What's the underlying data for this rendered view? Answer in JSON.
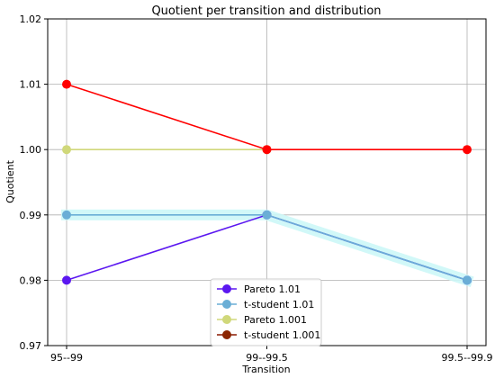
{
  "chart_data": {
    "type": "line",
    "title": "Quotient per transition and distribution",
    "xlabel": "Transition",
    "ylabel": "Quotient",
    "categories": [
      "95--99",
      "99--99.5",
      "99.5--99.9"
    ],
    "ylim": [
      0.97,
      1.02
    ],
    "yticks": [
      "0.97",
      "0.98",
      "0.99",
      "1.00",
      "1.01",
      "1.02"
    ],
    "ytick_values": [
      0.97,
      0.98,
      0.99,
      1.0,
      1.01,
      1.02
    ],
    "grid": true,
    "legend_position": "bottom-center",
    "series": [
      {
        "name": "Pareto 1.01",
        "values": [
          0.98,
          0.99,
          0.98
        ],
        "color": "#5b17f0",
        "marker_color": "#5b17f0"
      },
      {
        "name": "t-student 1.01",
        "values": [
          0.99,
          0.99,
          0.98
        ],
        "color": "#6aaed6",
        "marker_color": "#6aaed6",
        "highlight_color": "#ccf7f7"
      },
      {
        "name": "Pareto 1.001",
        "values": [
          1.0,
          1.0,
          null
        ],
        "color": "#d0d87a",
        "marker_color": "#d0d87a"
      },
      {
        "name": "t-student 1.001",
        "values": [
          1.01,
          1.0,
          1.0
        ],
        "color": "#ff0000",
        "marker_color": "#ff0000",
        "legend_line_color": "#8b1a00",
        "legend_marker_color": "#8b2500"
      }
    ]
  }
}
